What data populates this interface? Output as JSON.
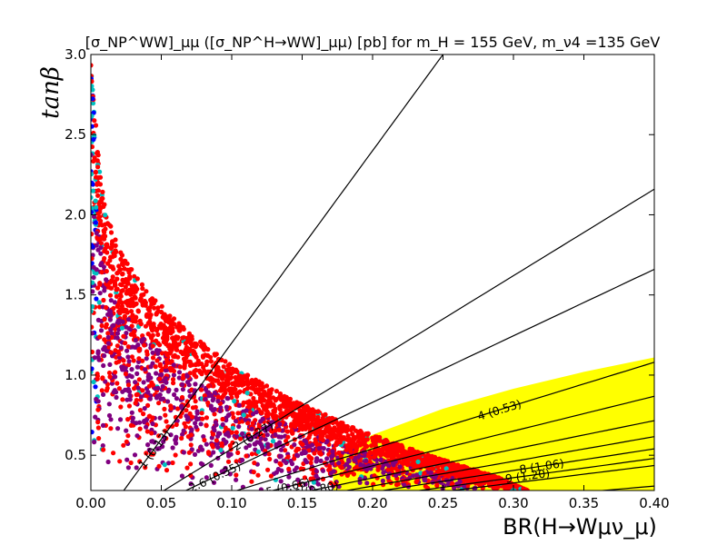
{
  "chart_data": {
    "type": "scatter",
    "title": "[σ_NP^WW]_μμ ([σ_NP^H→WW]_μμ) [pb] for m_H  = 155 GeV, m_ν4 =135 GeV",
    "xlabel": "BR(H→Wμν_μ)",
    "ylabel": "tanβ",
    "xlim": [
      0.0,
      0.4
    ],
    "ylim": [
      0.28,
      3.0
    ],
    "x_ticks": [
      "0.00",
      "0.05",
      "0.10",
      "0.15",
      "0.20",
      "0.25",
      "0.30",
      "0.35",
      "0.40"
    ],
    "y_ticks": [
      "0.5",
      "1.0",
      "1.5",
      "2.0",
      "2.5",
      "3.0"
    ],
    "grid": false,
    "excluded_region": {
      "color": "#ffff00",
      "upper_boundary": [
        [
          0.172,
          0.5
        ],
        [
          0.2,
          0.628
        ],
        [
          0.25,
          0.79
        ],
        [
          0.3,
          0.915
        ],
        [
          0.35,
          1.02
        ],
        [
          0.4,
          1.11
        ]
      ],
      "lower_y": 0.28
    },
    "contours": [
      {
        "label": "1 (0.13)",
        "k": 12.0
      },
      {
        "label": "2 (0.27)",
        "k": 5.4
      },
      {
        "label": "2.6 (0.35)",
        "k": 4.15
      },
      {
        "label": "4 (0.53)",
        "k": 2.7
      },
      {
        "label": "5 (0.66)",
        "k": 2.17
      },
      {
        "label": "6 (0.80)",
        "k": 1.79
      },
      {
        "label": "7 (0.93)",
        "k": 1.54
      },
      {
        "label": "8 (1.06)",
        "k": 1.35
      },
      {
        "label": "9 (1.20)",
        "k": 1.2
      },
      {
        "label": "9.9 (1.32)",
        "k": 1.09
      },
      {
        "label": "14 (1.86)",
        "k": 0.77
      },
      {
        "label": "17.9 (2.38)",
        "k": 0.6
      },
      {
        "label": "29.9 (3.26)",
        "k": 0.36
      },
      {
        "label": "(6.34)",
        "k": 0.17
      }
    ],
    "scatter_series": [
      {
        "color": "#ff0000",
        "region": "wide band along boundary"
      },
      {
        "color": "#800080",
        "region": "inner band"
      },
      {
        "color": "#0000ff",
        "region": "near BR = 0"
      },
      {
        "color": "#00c0c0",
        "region": "near BR = 0"
      }
    ],
    "scatter_envelope": [
      [
        0.0,
        3.0
      ],
      [
        0.005,
        2.4
      ],
      [
        0.01,
        2.05
      ],
      [
        0.02,
        1.78
      ],
      [
        0.04,
        1.52
      ],
      [
        0.07,
        1.26
      ],
      [
        0.1,
        1.06
      ],
      [
        0.14,
        0.86
      ],
      [
        0.19,
        0.66
      ],
      [
        0.24,
        0.5
      ],
      [
        0.29,
        0.36
      ],
      [
        0.31,
        0.28
      ]
    ]
  }
}
